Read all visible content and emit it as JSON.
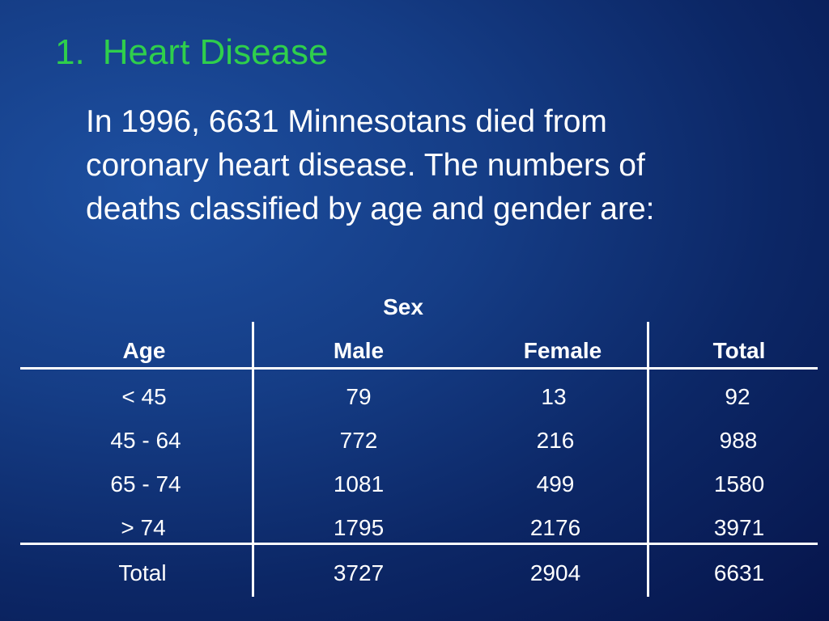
{
  "slide": {
    "title_number": "1.",
    "title_text": "Heart Disease",
    "intro_lines": [
      "In 1996, 6631 Minnesotans died from",
      "coronary heart disease. The numbers of",
      "deaths classified by age and gender are:"
    ],
    "title_color": "#2fcf4c"
  },
  "table": {
    "group_header": "Sex",
    "headers": [
      "Age",
      "Male",
      "Female",
      "Total"
    ],
    "rows": [
      [
        "< 45",
        "79",
        "13",
        "92"
      ],
      [
        "45 - 64",
        "772",
        "216",
        "988"
      ],
      [
        "65 - 74",
        "1081",
        "499",
        "1580"
      ],
      [
        "> 74",
        "1795",
        "2176",
        "3971"
      ]
    ],
    "total_row": [
      "Total",
      "3727",
      "2904",
      "6631"
    ]
  }
}
